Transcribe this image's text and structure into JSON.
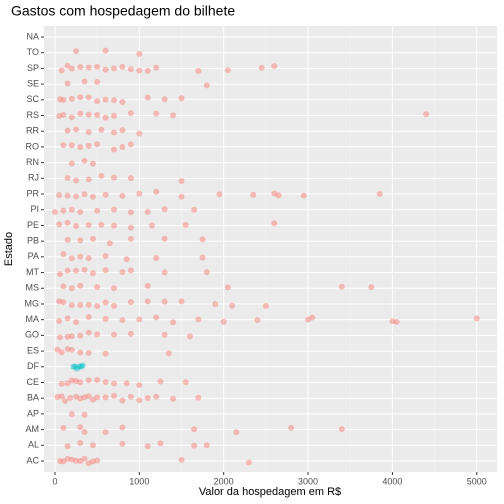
{
  "chart_data": {
    "type": "scatter",
    "title": "Gastos com hospedagem do bilhete",
    "x_label": "Valor da hospedagem em R$",
    "y_label": "Estado",
    "categories": [
      "AC",
      "AL",
      "AM",
      "AP",
      "BA",
      "CE",
      "DF",
      "ES",
      "GO",
      "MA",
      "MG",
      "MS",
      "MT",
      "PA",
      "PB",
      "PE",
      "PI",
      "PR",
      "RJ",
      "RN",
      "RO",
      "RR",
      "RS",
      "SC",
      "SE",
      "SP",
      "TO",
      "NA"
    ],
    "colors": [
      "#F8766D",
      "#F8766D",
      "#F8766D",
      "#F8766D",
      "#F8766D",
      "#F8766D",
      "#00BFC4",
      "#F8766D",
      "#F8766D",
      "#F8766D",
      "#F8766D",
      "#F8766D",
      "#F8766D",
      "#F8766D",
      "#F8766D",
      "#F8766D",
      "#F8766D",
      "#F8766D",
      "#F8766D",
      "#F8766D",
      "#F8766D",
      "#F8766D",
      "#F8766D",
      "#F8766D",
      "#F8766D",
      "#F8766D",
      "#F8766D",
      "#F8766D"
    ],
    "values": [
      [
        60,
        100,
        150,
        200,
        250,
        300,
        350,
        400,
        450,
        500,
        1500,
        2300
      ],
      [
        150,
        300,
        450,
        800,
        1100,
        1250,
        1650,
        1800
      ],
      [
        100,
        300,
        350,
        600,
        800,
        1650,
        2150,
        2800,
        3400
      ],
      [
        200,
        350
      ],
      [
        30,
        80,
        120,
        180,
        250,
        300,
        350,
        400,
        450,
        500,
        600,
        700,
        800,
        900,
        1000,
        1100,
        1200,
        1400,
        1700
      ],
      [
        80,
        150,
        200,
        250,
        300,
        400,
        500,
        600,
        700,
        850,
        1000,
        1250,
        1550
      ],
      [
        220,
        240,
        260,
        290,
        310,
        330
      ],
      [
        30,
        80,
        150,
        200,
        300,
        400,
        600,
        1350
      ],
      [
        60,
        150,
        200,
        300,
        400,
        500,
        700,
        900,
        1300,
        1600
      ],
      [
        50,
        150,
        250,
        400,
        600,
        800,
        1000,
        1200,
        1400,
        1700,
        2000,
        2400,
        3000,
        3050,
        4000,
        4050,
        5000
      ],
      [
        50,
        100,
        200,
        300,
        400,
        500,
        600,
        700,
        900,
        1100,
        1300,
        1500,
        1900,
        2100,
        2500
      ],
      [
        100,
        200,
        300,
        500,
        700,
        1100,
        2050,
        3400,
        3750
      ],
      [
        60,
        150,
        250,
        350,
        450,
        600,
        800,
        900,
        1300,
        1800
      ],
      [
        100,
        200,
        300,
        400,
        600,
        850,
        1200,
        1750
      ],
      [
        150,
        300,
        450,
        650,
        900,
        1300,
        1750
      ],
      [
        50,
        150,
        250,
        400,
        550,
        700,
        900,
        1150,
        1550,
        2600
      ],
      [
        0,
        100,
        200,
        300,
        500,
        700,
        900,
        1100,
        1300,
        1650
      ],
      [
        50,
        150,
        250,
        350,
        450,
        600,
        800,
        1000,
        1200,
        1500,
        1950,
        2350,
        2600,
        2650,
        2950,
        3850
      ],
      [
        150,
        250,
        400,
        550,
        700,
        900,
        1500
      ],
      [
        200,
        350,
        450
      ],
      [
        100,
        200,
        300,
        400,
        500,
        700,
        800,
        900
      ],
      [
        150,
        250,
        400,
        550,
        700,
        800,
        1000
      ],
      [
        50,
        100,
        200,
        300,
        400,
        500,
        600,
        700,
        900,
        1200,
        1400,
        4400
      ],
      [
        60,
        100,
        200,
        300,
        400,
        500,
        600,
        700,
        800,
        1100,
        1300,
        1500
      ],
      [
        150,
        350,
        500,
        1800
      ],
      [
        80,
        150,
        200,
        300,
        400,
        500,
        600,
        700,
        800,
        900,
        1000,
        1100,
        1200,
        1700,
        2050,
        2450,
        2600
      ],
      [
        250,
        600,
        1000
      ],
      []
    ],
    "xlim": [
      -130,
      5240
    ],
    "xticks": [
      0,
      1000,
      2000,
      3000,
      4000,
      5000
    ],
    "grid": true
  }
}
